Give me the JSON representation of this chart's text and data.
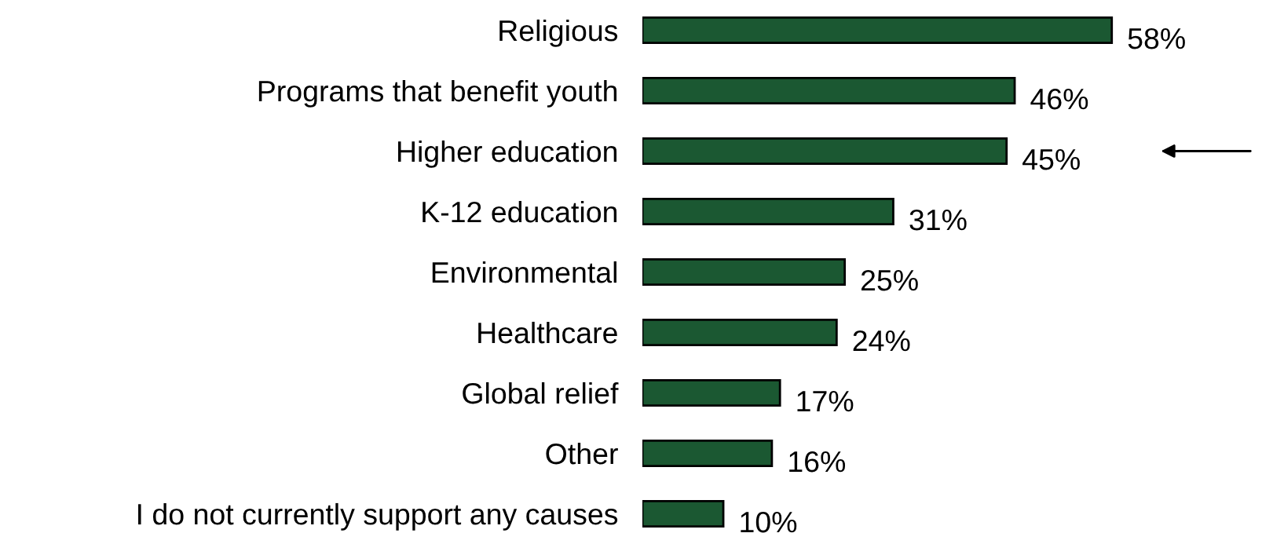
{
  "chart_data": {
    "type": "bar",
    "orientation": "horizontal",
    "categories": [
      "Religious",
      "Programs that benefit youth",
      "Higher education",
      "K-12 education",
      "Environmental",
      "Healthcare",
      "Global relief",
      "Other",
      "I do not currently support any causes"
    ],
    "values": [
      58,
      46,
      45,
      31,
      25,
      24,
      17,
      16,
      10
    ],
    "value_labels": [
      "58%",
      "46%",
      "45%",
      "31%",
      "25%",
      "24%",
      "17%",
      "16%",
      "10%"
    ],
    "color": "#1b5832",
    "grid": false,
    "legend": false
  }
}
